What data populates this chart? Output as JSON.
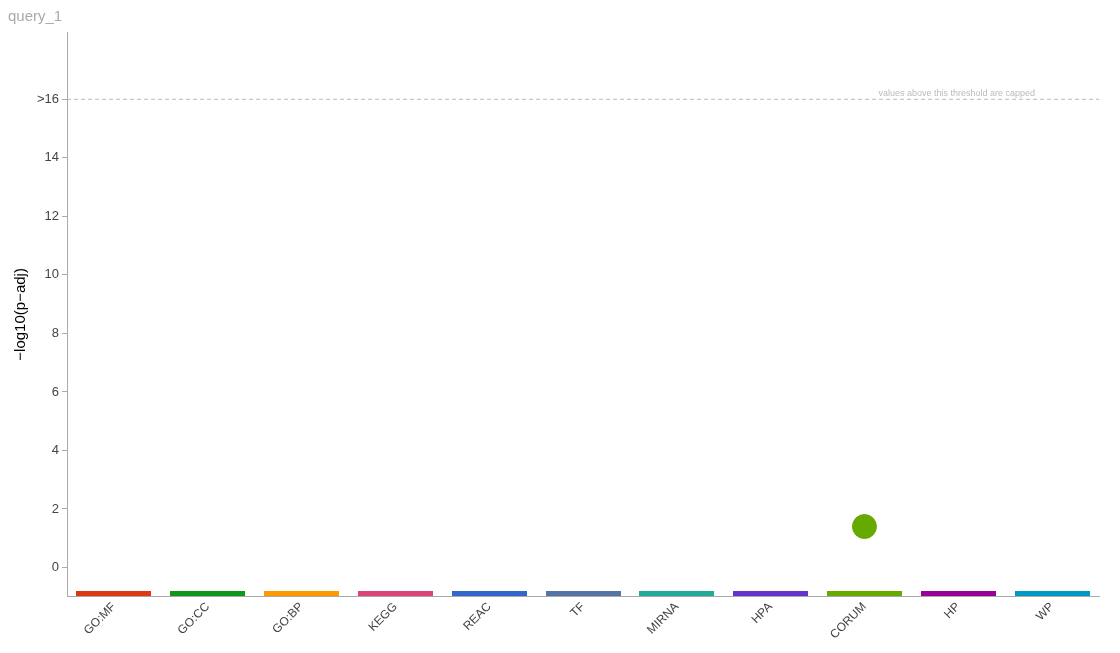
{
  "chart_data": {
    "type": "scatter",
    "title": "query_1",
    "ylabel": "−log10(p−adj)",
    "categories": [
      "GO:MF",
      "GO:CC",
      "GO:BP",
      "KEGG",
      "REAC",
      "TF",
      "MIRNA",
      "HPA",
      "CORUM",
      "HP",
      "WP"
    ],
    "colors": [
      "#dc3912",
      "#109618",
      "#ff9900",
      "#dd4477",
      "#3366cc",
      "#5574a6",
      "#22aa99",
      "#6633cc",
      "#66aa00",
      "#990099",
      "#0099c6"
    ],
    "ylim": [
      -1,
      18.3
    ],
    "yticks": [
      0,
      2,
      4,
      6,
      8,
      10,
      12,
      14,
      {
        "value": 16,
        "label": ">16"
      }
    ],
    "series": [
      {
        "color": "#66aa00",
        "x": [
          "CORUM"
        ],
        "values": [
          1.4
        ]
      }
    ],
    "ref_lines": [
      {
        "axis": "y",
        "value": 16,
        "label": "values above this threshold are capped",
        "color": "#bbbbbb",
        "line_style": "dashed"
      }
    ],
    "marker": "circle",
    "grid": false,
    "legend": false
  }
}
